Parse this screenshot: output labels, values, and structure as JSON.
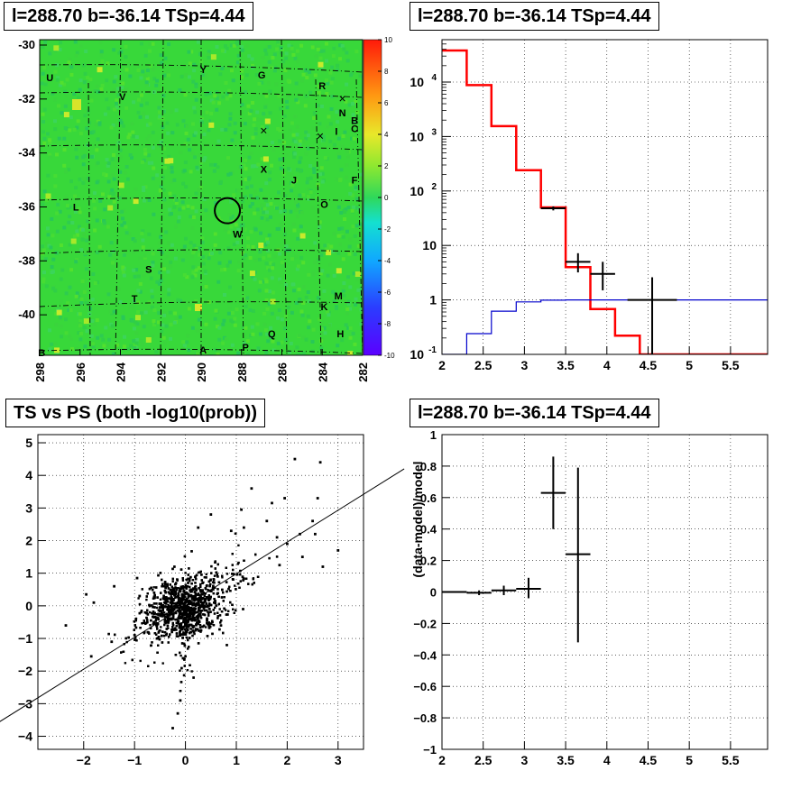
{
  "panels": {
    "map_title": "l=288.70 b=-36.14 TSp=4.44",
    "spectrum_title": "l=288.70 b=-36.14 TSp=4.44",
    "scatter_title": "TS vs PS (both -log10(prob))",
    "residual_title": "l=288.70 b=-36.14 TSp=4.44"
  },
  "chart_data": [
    {
      "type": "heatmap",
      "title": "l=288.70 b=-36.14 TSp=4.44",
      "xlim": [
        298,
        282
      ],
      "ylim": [
        -41.5,
        -29.8
      ],
      "x_ticks": [
        "298",
        "296",
        "294",
        "292",
        "290",
        "288",
        "286",
        "284",
        "282"
      ],
      "y_ticks": [
        "-30",
        "-32",
        "-34",
        "-36",
        "-38",
        "-40"
      ],
      "colorbar": {
        "min": -10,
        "max": 10,
        "ticks": [
          "10",
          "8",
          "6",
          "4",
          "2",
          "0",
          "-2",
          "-4",
          "-6",
          "-8",
          "-10"
        ]
      },
      "background_color": "#38d83a",
      "source_circle": {
        "l": 288.7,
        "b": -36.14
      },
      "labels": [
        {
          "text": "U",
          "l": 297.5,
          "b": -31.2
        },
        {
          "text": "V",
          "l": 293.9,
          "b": -31.9
        },
        {
          "text": "Y",
          "l": 289.9,
          "b": -30.9
        },
        {
          "text": "G",
          "l": 287.0,
          "b": -31.1
        },
        {
          "text": "R",
          "l": 284.0,
          "b": -31.5
        },
        {
          "text": "N",
          "l": 283.0,
          "b": -32.5
        },
        {
          "text": "B",
          "l": 282.4,
          "b": -32.8
        },
        {
          "text": "I",
          "l": 283.3,
          "b": -33.2
        },
        {
          "text": "C",
          "l": 282.4,
          "b": -33.1
        },
        {
          "text": "X",
          "l": 286.9,
          "b": -34.6
        },
        {
          "text": "J",
          "l": 285.4,
          "b": -35.0
        },
        {
          "text": "F",
          "l": 282.4,
          "b": -35.0
        },
        {
          "text": "L",
          "l": 296.2,
          "b": -36.0
        },
        {
          "text": "O",
          "l": 283.9,
          "b": -35.9
        },
        {
          "text": "W",
          "l": 288.2,
          "b": -37.0
        },
        {
          "text": "S",
          "l": 292.6,
          "b": -38.3
        },
        {
          "text": "T",
          "l": 293.3,
          "b": -39.4
        },
        {
          "text": "M",
          "l": 283.2,
          "b": -39.3
        },
        {
          "text": "K",
          "l": 283.9,
          "b": -39.7
        },
        {
          "text": "Q",
          "l": 286.5,
          "b": -40.7
        },
        {
          "text": "H",
          "l": 283.1,
          "b": -40.7
        },
        {
          "text": "P",
          "l": 287.8,
          "b": -41.2
        },
        {
          "text": "A",
          "l": 289.9,
          "b": -41.3
        },
        {
          "text": "B",
          "l": 297.9,
          "b": -41.4
        }
      ],
      "x_markers": [
        {
          "l": 283.0,
          "b": -32.0
        },
        {
          "l": 286.9,
          "b": -33.2
        },
        {
          "l": 284.1,
          "b": -33.4
        }
      ]
    },
    {
      "type": "line",
      "title": "l=288.70 b=-36.14 TSp=4.44",
      "y_scale": "log",
      "xlim": [
        2,
        5.95
      ],
      "ylim": [
        0.1,
        60000
      ],
      "x_ticks": [
        "2",
        "2.5",
        "3",
        "3.5",
        "4",
        "4.5",
        "5",
        "5.5"
      ],
      "y_ticks": [
        "10^-1",
        "1",
        "10",
        "10^2",
        "10^3",
        "10^4"
      ],
      "series": [
        {
          "color": "#ff0000",
          "step_edges": [
            2.0,
            2.3,
            2.6,
            2.9,
            3.2,
            3.5,
            3.8,
            4.1,
            4.4,
            5.95
          ],
          "values": [
            38000,
            8800,
            1550,
            240,
            50,
            4.0,
            0.68,
            0.22,
            0.1
          ]
        },
        {
          "color": "#0000cc",
          "step_edges": [
            2.0,
            2.3,
            2.6,
            2.9,
            3.2,
            3.5,
            3.8,
            4.1,
            4.4,
            5.95
          ],
          "values": [
            0.1,
            0.24,
            0.62,
            0.92,
            0.99,
            1.0,
            1.0,
            1.0,
            1.0
          ]
        }
      ],
      "data_points": [
        {
          "x": 3.35,
          "xerr": 0.15,
          "y": 48,
          "ylo": 44,
          "yhi": 52
        },
        {
          "x": 3.65,
          "xerr": 0.15,
          "y": 5.0,
          "ylo": 3.2,
          "yhi": 7.2
        },
        {
          "x": 3.95,
          "xerr": 0.15,
          "y": 3.0,
          "ylo": 1.5,
          "yhi": 5.0
        },
        {
          "x": 4.55,
          "xerr": 0.3,
          "y": 1.0,
          "ylo": 0.1,
          "yhi": 2.6
        }
      ]
    },
    {
      "type": "scatter",
      "title": "TS vs PS (both -log10(prob))",
      "xlim": [
        -2.9,
        3.5
      ],
      "ylim": [
        -4.4,
        5.25
      ],
      "x_ticks": [
        "-2",
        "-1",
        "0",
        "1",
        "2",
        "3"
      ],
      "y_ticks": [
        "-4",
        "-3",
        "-2",
        "-1",
        "0",
        "1",
        "2",
        "3",
        "4",
        "5"
      ],
      "reference_line": {
        "x1": -3.7,
        "y1": -3.6,
        "x2": 4.3,
        "y2": 4.2
      },
      "points": [
        [
          2.65,
          4.4
        ],
        [
          2.15,
          4.5
        ],
        [
          2.5,
          2.6
        ],
        [
          2.6,
          3.3
        ],
        [
          2.55,
          2.2
        ],
        [
          2.25,
          2.2
        ],
        [
          3.0,
          1.7
        ],
        [
          2.7,
          1.2
        ],
        [
          1.95,
          3.3
        ],
        [
          1.7,
          3.15
        ],
        [
          1.3,
          3.6
        ],
        [
          1.1,
          2.95
        ],
        [
          1.6,
          2.6
        ],
        [
          1.8,
          2.1
        ],
        [
          2.0,
          1.9
        ],
        [
          2.3,
          1.5
        ],
        [
          1.85,
          1.25
        ],
        [
          1.15,
          2.4
        ],
        [
          -2.35,
          -0.6
        ],
        [
          -1.85,
          -1.55
        ],
        [
          -1.45,
          -1.1
        ],
        [
          -1.95,
          0.35
        ],
        [
          -1.8,
          0.1
        ],
        [
          -1.4,
          0.6
        ],
        [
          -0.95,
          0.85
        ],
        [
          -1.0,
          -0.9
        ],
        [
          -0.25,
          -3.75
        ],
        [
          -0.1,
          -2.9
        ],
        [
          -0.15,
          -3.3
        ],
        [
          0.25,
          2.4
        ],
        [
          0.5,
          2.8
        ],
        [
          0.9,
          2.3
        ],
        [
          -0.9,
          0.3
        ],
        [
          -0.75,
          -0.5
        ]
      ],
      "density_center": [
        0.0,
        0.0
      ]
    },
    {
      "type": "line",
      "title": "l=288.70 b=-36.14 TSp=4.44",
      "xlim": [
        2,
        5.95
      ],
      "ylim": [
        -1,
        1
      ],
      "ylabel": "(data-model)/model",
      "x_ticks": [
        "2",
        "2.5",
        "3",
        "3.5",
        "4",
        "4.5",
        "5",
        "5.5"
      ],
      "y_ticks": [
        "1",
        "0.8",
        "0.6",
        "0.4",
        "0.2",
        "0",
        "−0.2",
        "−0.4",
        "−0.6",
        "−0.8",
        "−1"
      ],
      "points": [
        {
          "x": 2.15,
          "xerr": 0.15,
          "y": 0.0,
          "ylo": -0.005,
          "yhi": 0.005
        },
        {
          "x": 2.45,
          "xerr": 0.15,
          "y": -0.005,
          "ylo": -0.02,
          "yhi": 0.01
        },
        {
          "x": 2.75,
          "xerr": 0.15,
          "y": 0.01,
          "ylo": -0.02,
          "yhi": 0.04
        },
        {
          "x": 3.05,
          "xerr": 0.15,
          "y": 0.02,
          "ylo": -0.04,
          "yhi": 0.09
        },
        {
          "x": 3.35,
          "xerr": 0.15,
          "y": 0.63,
          "ylo": 0.4,
          "yhi": 0.86
        },
        {
          "x": 3.65,
          "xerr": 0.15,
          "y": 0.24,
          "ylo": -0.32,
          "yhi": 0.79
        }
      ]
    }
  ]
}
